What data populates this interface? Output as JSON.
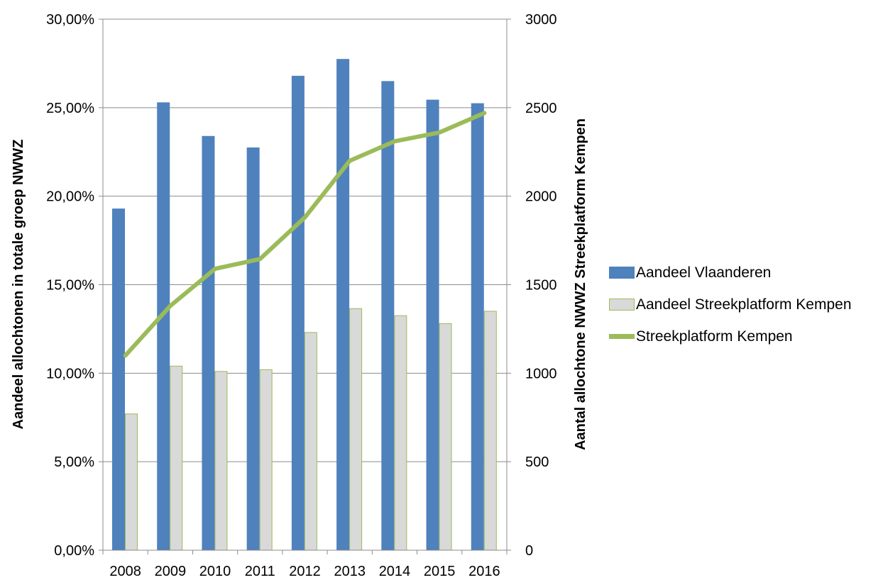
{
  "chart_data": {
    "type": "bar",
    "title": "",
    "categories": [
      "2008",
      "2009",
      "2010",
      "2011",
      "2012",
      "2013",
      "2014",
      "2015",
      "2016"
    ],
    "series": [
      {
        "name": "Aandeel Vlaanderen",
        "kind": "bar",
        "axis": "left",
        "color": "#4f81bd",
        "values": [
          19.3,
          25.3,
          23.4,
          22.75,
          26.8,
          27.75,
          26.5,
          25.45,
          25.25
        ]
      },
      {
        "name": "Aandeel Streekplatform Kempen",
        "kind": "bar",
        "axis": "left",
        "color": "#d9d9d9",
        "border_color": "#9bbb59",
        "values": [
          7.7,
          10.4,
          10.1,
          10.2,
          12.3,
          13.65,
          13.25,
          12.8,
          13.5
        ]
      },
      {
        "name": "Streekplatform Kempen",
        "kind": "line",
        "axis": "right",
        "color": "#9bbb59",
        "values": [
          1100,
          1380,
          1590,
          1645,
          1880,
          2200,
          2310,
          2360,
          2470
        ]
      }
    ],
    "y_left": {
      "label": "Aandeel allochtonen in totale groep NWWZ",
      "ylim": [
        0,
        30
      ],
      "ticks": [
        "0,00%",
        "5,00%",
        "10,00%",
        "15,00%",
        "20,00%",
        "25,00%",
        "30,00%"
      ]
    },
    "y_right": {
      "label": "Aantal allochtone  NWWZ Streekplatform Kempen",
      "ylim": [
        0,
        3000
      ],
      "ticks": [
        "0",
        "500",
        "1000",
        "1500",
        "2000",
        "2500",
        "3000"
      ]
    },
    "grid": true,
    "legend_position": "right"
  }
}
